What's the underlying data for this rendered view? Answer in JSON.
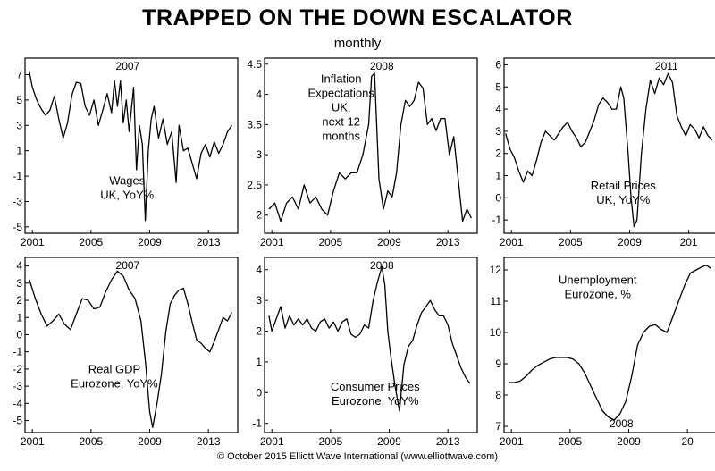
{
  "title": "TRAPPED ON THE DOWN ESCALATOR",
  "subtitle": "monthly",
  "credit": "© October 2015 Elliott Wave International (www.elliottwave.com)",
  "chart_data": [
    {
      "type": "line",
      "label_lines": [
        "Wages",
        "UK, YoY%"
      ],
      "annotation": "2007",
      "xlim": [
        2000.5,
        2015.0
      ],
      "ylim": [
        -5.5,
        8.3
      ],
      "x_ticks": [
        "2001",
        "2005",
        "2009",
        "2013"
      ],
      "y_ticks": [
        "-5",
        "-3",
        "-1",
        "1",
        "3",
        "5",
        "7"
      ],
      "y_tick_values": [
        -5,
        -3,
        -1,
        1,
        3,
        5,
        7
      ],
      "x": [
        2000.8,
        2001.0,
        2001.3,
        2001.6,
        2001.9,
        2002.2,
        2002.5,
        2002.8,
        2003.1,
        2003.4,
        2003.7,
        2004.0,
        2004.3,
        2004.6,
        2004.9,
        2005.2,
        2005.5,
        2005.8,
        2006.1,
        2006.4,
        2006.6,
        2006.8,
        2007.0,
        2007.2,
        2007.4,
        2007.6,
        2007.9,
        2008.1,
        2008.3,
        2008.5,
        2008.7,
        2008.9,
        2009.1,
        2009.3,
        2009.6,
        2009.9,
        2010.2,
        2010.5,
        2010.8,
        2011.0,
        2011.3,
        2011.6,
        2011.9,
        2012.2,
        2012.5,
        2012.8,
        2013.1,
        2013.4,
        2013.7,
        2014.0,
        2014.3,
        2014.6
      ],
      "y": [
        7.2,
        6,
        5,
        4.3,
        3.8,
        4.2,
        5.3,
        3.5,
        2,
        3.2,
        5.4,
        6.4,
        6.3,
        4.5,
        3.8,
        5,
        3,
        4.2,
        5.5,
        4,
        6.5,
        4.5,
        6.5,
        3.2,
        5,
        2.5,
        6,
        -0.5,
        3,
        1.5,
        -4.5,
        1,
        3.5,
        4.5,
        2,
        3.5,
        1.5,
        2.5,
        -1.5,
        3,
        1,
        1.2,
        0,
        -1.2,
        0.8,
        1.5,
        0.5,
        1.7,
        0.8,
        1.5,
        2.5,
        3
      ]
    },
    {
      "type": "line",
      "label_lines": [
        "Inflation",
        "Expectations",
        "UK,",
        "next 12",
        "months"
      ],
      "annotation": "2008",
      "xlim": [
        2000.5,
        2015.0
      ],
      "ylim": [
        1.7,
        4.6
      ],
      "x_ticks": [
        "2001",
        "2005",
        "2009",
        "2013"
      ],
      "y_ticks": [
        "2",
        "2.5",
        "3",
        "3.5",
        "4",
        "4.5"
      ],
      "y_tick_values": [
        2,
        2.5,
        3,
        3.5,
        4,
        4.5
      ],
      "x": [
        2000.8,
        2001.2,
        2001.6,
        2002.0,
        2002.4,
        2002.8,
        2003.2,
        2003.6,
        2004.0,
        2004.4,
        2004.8,
        2005.2,
        2005.6,
        2006.0,
        2006.4,
        2006.8,
        2007.2,
        2007.6,
        2007.8,
        2008.0,
        2008.3,
        2008.6,
        2008.9,
        2009.2,
        2009.5,
        2009.8,
        2010.1,
        2010.4,
        2010.7,
        2011.0,
        2011.3,
        2011.6,
        2011.9,
        2012.2,
        2012.5,
        2012.8,
        2013.1,
        2013.4,
        2013.7,
        2014.0,
        2014.3,
        2014.6
      ],
      "y": [
        2.1,
        2.2,
        1.9,
        2.2,
        2.3,
        2.1,
        2.5,
        2.2,
        2.3,
        2.1,
        2,
        2.4,
        2.7,
        2.6,
        2.7,
        2.7,
        3,
        3.5,
        4.3,
        4.35,
        2.6,
        2.1,
        2.4,
        2.3,
        2.7,
        3.5,
        3.9,
        3.8,
        3.9,
        4.2,
        4.1,
        3.5,
        3.6,
        3.4,
        3.6,
        3.6,
        3.0,
        3.3,
        2.6,
        1.9,
        2.1,
        1.95
      ]
    },
    {
      "type": "line",
      "label_lines": [
        "Retail Prices",
        "UK, YoY%"
      ],
      "annotation": "2011",
      "xlim": [
        2000.5,
        2014.9
      ],
      "ylim": [
        -1.6,
        6.3
      ],
      "x_ticks": [
        "2001",
        "2005",
        "2009",
        "201"
      ],
      "y_ticks": [
        "-1",
        "0",
        "1",
        "2",
        "3",
        "4",
        "5",
        "6"
      ],
      "y_tick_values": [
        -1,
        0,
        1,
        2,
        3,
        4,
        5,
        6
      ],
      "x": [
        2000.6,
        2000.9,
        2001.2,
        2001.5,
        2001.8,
        2002.1,
        2002.4,
        2002.7,
        2003.0,
        2003.3,
        2003.6,
        2003.9,
        2004.2,
        2004.5,
        2004.8,
        2005.1,
        2005.4,
        2005.7,
        2006.0,
        2006.3,
        2006.6,
        2006.9,
        2007.2,
        2007.5,
        2007.8,
        2008.1,
        2008.4,
        2008.6,
        2008.9,
        2009.1,
        2009.3,
        2009.5,
        2009.8,
        2010.1,
        2010.4,
        2010.7,
        2011.0,
        2011.3,
        2011.6,
        2011.9,
        2012.2,
        2012.5,
        2012.8,
        2013.1,
        2013.4,
        2013.7,
        2014.0,
        2014.3,
        2014.6
      ],
      "y": [
        2.9,
        2.2,
        1.8,
        1.2,
        0.7,
        1.2,
        1,
        1.7,
        2.5,
        3,
        2.8,
        2.6,
        2.9,
        3.2,
        3.4,
        3,
        2.7,
        2.3,
        2.5,
        3,
        3.5,
        4.2,
        4.5,
        4.3,
        4,
        4,
        5,
        4.5,
        2,
        0,
        -1.3,
        -1,
        2,
        4,
        5.3,
        4.7,
        5.4,
        5.1,
        5.6,
        5.2,
        3.7,
        3.2,
        2.8,
        3.3,
        3.1,
        2.7,
        3.2,
        2.8,
        2.6
      ]
    },
    {
      "type": "line",
      "label_lines": [
        "Real GDP",
        "Eurozone, YoY%"
      ],
      "annotation": "2007",
      "xlim": [
        2000.5,
        2015.0
      ],
      "ylim": [
        -5.7,
        4.5
      ],
      "x_ticks": [
        "2001",
        "2005",
        "2009",
        "2013"
      ],
      "y_ticks": [
        "-5",
        "-4",
        "-3",
        "-2",
        "-1",
        "0",
        "1",
        "2",
        "3",
        "4"
      ],
      "y_tick_values": [
        -5,
        -4,
        -3,
        -2,
        -1,
        0,
        1,
        2,
        3,
        4
      ],
      "x": [
        2000.8,
        2001.2,
        2001.6,
        2002.0,
        2002.4,
        2002.8,
        2003.2,
        2003.6,
        2004.0,
        2004.4,
        2004.8,
        2005.2,
        2005.6,
        2006.0,
        2006.4,
        2006.8,
        2007.2,
        2007.6,
        2008.0,
        2008.4,
        2008.7,
        2009.0,
        2009.2,
        2009.5,
        2009.8,
        2010.1,
        2010.4,
        2010.7,
        2011.0,
        2011.3,
        2011.6,
        2011.9,
        2012.2,
        2012.5,
        2012.8,
        2013.1,
        2013.4,
        2013.7,
        2014.0,
        2014.3,
        2014.6
      ],
      "y": [
        3.2,
        2.1,
        1.2,
        0.5,
        0.8,
        1.2,
        0.6,
        0.3,
        1.2,
        2.1,
        2.0,
        1.5,
        1.6,
        2.5,
        3.2,
        3.7,
        3.4,
        2.6,
        2.1,
        0.8,
        -1.5,
        -4.5,
        -5.4,
        -4.0,
        -2.3,
        0.2,
        1.8,
        2.3,
        2.6,
        2.7,
        1.8,
        0.7,
        -0.3,
        -0.5,
        -0.8,
        -1.0,
        -0.4,
        0.3,
        1.0,
        0.8,
        1.3
      ]
    },
    {
      "type": "line",
      "label_lines": [
        "Consumer Prices",
        "Eurozone, YoY%"
      ],
      "annotation": "2008",
      "xlim": [
        2000.5,
        2015.0
      ],
      "ylim": [
        -1.3,
        4.4
      ],
      "x_ticks": [
        "2001",
        "2005",
        "2009",
        "2013"
      ],
      "y_ticks": [
        "-1",
        "0",
        "1",
        "2",
        "3",
        "4"
      ],
      "y_tick_values": [
        -1,
        0,
        1,
        2,
        3,
        4
      ],
      "x": [
        2000.8,
        2001.0,
        2001.3,
        2001.6,
        2001.9,
        2002.2,
        2002.5,
        2002.8,
        2003.1,
        2003.4,
        2003.7,
        2004.0,
        2004.3,
        2004.6,
        2004.9,
        2005.2,
        2005.5,
        2005.8,
        2006.1,
        2006.4,
        2006.7,
        2007.0,
        2007.3,
        2007.6,
        2007.9,
        2008.2,
        2008.5,
        2008.7,
        2008.9,
        2009.1,
        2009.4,
        2009.7,
        2010.0,
        2010.3,
        2010.6,
        2010.9,
        2011.2,
        2011.5,
        2011.8,
        2012.1,
        2012.4,
        2012.7,
        2013.0,
        2013.3,
        2013.6,
        2013.9,
        2014.2,
        2014.5
      ],
      "y": [
        2.5,
        2.0,
        2.4,
        2.8,
        2.1,
        2.5,
        2.2,
        2.4,
        2.2,
        2.4,
        2.1,
        2.0,
        2.3,
        2.4,
        2.1,
        2.3,
        2.0,
        2.3,
        2.4,
        1.9,
        1.8,
        1.9,
        2.2,
        2.1,
        3.0,
        3.6,
        4.1,
        3.5,
        2.0,
        1.2,
        0.2,
        -0.6,
        0.9,
        1.5,
        1.7,
        2.2,
        2.6,
        2.8,
        3.0,
        2.7,
        2.5,
        2.5,
        2.2,
        1.6,
        1.2,
        0.8,
        0.5,
        0.3
      ]
    },
    {
      "type": "line",
      "label_lines": [
        "Unemployment",
        "Eurozone, %"
      ],
      "annotation": "2008",
      "xlim": [
        2000.5,
        2015.0
      ],
      "ylim": [
        6.8,
        12.4
      ],
      "x_ticks": [
        "2001",
        "2005",
        "2009",
        "20"
      ],
      "y_ticks": [
        "7",
        "8",
        "9",
        "10",
        "11",
        "12"
      ],
      "y_tick_values": [
        7,
        8,
        9,
        10,
        11,
        12
      ],
      "x": [
        2000.8,
        2001.2,
        2001.6,
        2002.0,
        2002.4,
        2002.8,
        2003.2,
        2003.6,
        2004.0,
        2004.4,
        2004.8,
        2005.2,
        2005.6,
        2006.0,
        2006.4,
        2006.8,
        2007.2,
        2007.6,
        2008.0,
        2008.4,
        2008.8,
        2009.2,
        2009.6,
        2010.0,
        2010.4,
        2010.8,
        2011.2,
        2011.6,
        2012.0,
        2012.4,
        2012.8,
        2013.2,
        2013.6,
        2014.0,
        2014.3,
        2014.6
      ],
      "y": [
        8.4,
        8.4,
        8.45,
        8.6,
        8.8,
        8.95,
        9.05,
        9.15,
        9.2,
        9.2,
        9.2,
        9.15,
        9.0,
        8.7,
        8.3,
        7.9,
        7.5,
        7.3,
        7.2,
        7.4,
        7.8,
        8.6,
        9.6,
        10.0,
        10.2,
        10.25,
        10.1,
        10.0,
        10.5,
        11.0,
        11.5,
        11.9,
        12.0,
        12.1,
        12.15,
        12.05
      ]
    }
  ]
}
